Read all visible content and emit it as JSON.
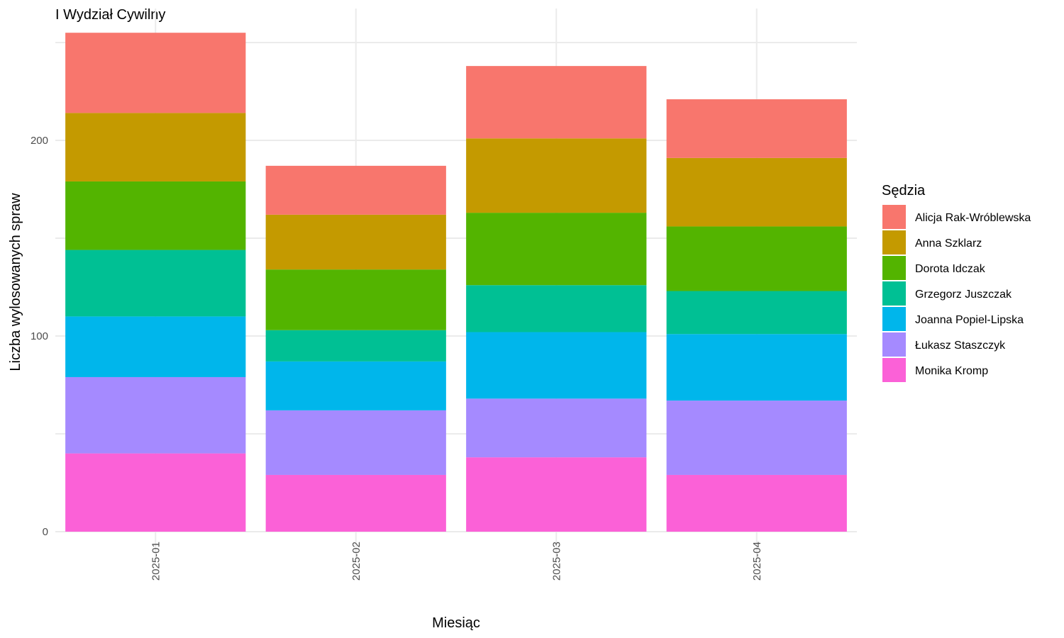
{
  "chart_data": {
    "type": "bar",
    "stacked": true,
    "title": "I Wydział Cywilny",
    "xlabel": "Miesiąc",
    "ylabel": "Liczba wylosowanych spraw",
    "categories": [
      "2025-01",
      "2025-02",
      "2025-03",
      "2025-04"
    ],
    "y_ticks": [
      0,
      100,
      200
    ],
    "ylim": [
      0,
      260
    ],
    "grid": true,
    "legend": {
      "title": "Sędzia",
      "position": "right"
    },
    "series": [
      {
        "name": "Alicja Rak-Wróblewska",
        "color": "#F8766D",
        "values": [
          41,
          25,
          37,
          30
        ]
      },
      {
        "name": "Anna Szklarz",
        "color": "#C49A00",
        "values": [
          35,
          28,
          38,
          35
        ]
      },
      {
        "name": "Dorota Idczak",
        "color": "#53B400",
        "values": [
          35,
          31,
          37,
          33
        ]
      },
      {
        "name": "Grzegorz Juszczak",
        "color": "#00C094",
        "values": [
          34,
          16,
          24,
          22
        ]
      },
      {
        "name": "Joanna Popiel-Lipska",
        "color": "#00B6EB",
        "values": [
          31,
          25,
          34,
          34
        ]
      },
      {
        "name": "Łukasz Staszczyk",
        "color": "#A58AFF",
        "values": [
          39,
          33,
          30,
          38
        ]
      },
      {
        "name": "Monika Kromp",
        "color": "#FB61D7",
        "values": [
          40,
          29,
          38,
          29
        ]
      }
    ]
  }
}
